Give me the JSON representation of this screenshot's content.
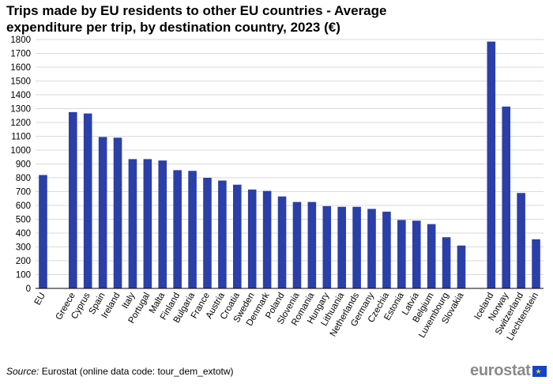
{
  "chart_data": {
    "type": "bar",
    "title": "Trips made by EU residents to other EU countries - Average expenditure per trip, by destination country, 2023 (€)",
    "xlabel": "",
    "ylabel": "",
    "ylim": [
      0,
      1800
    ],
    "ytick_step": 100,
    "grid": true,
    "bar_color": "#2b3fa8",
    "categories": [
      "EU",
      "",
      "Greece",
      "Cyprus",
      "Spain",
      "Ireland",
      "Italy",
      "Portugal",
      "Malta",
      "Finland",
      "Bulgaria",
      "France",
      "Austria",
      "Croatia",
      "Sweden",
      "Denmark",
      "Poland",
      "Slovenia",
      "Romania",
      "Hungary",
      "Lithuania",
      "Netherlands",
      "Germany",
      "Czechia",
      "Estonia",
      "Latvia",
      "Belgium",
      "Luxembourg",
      "Slovakia",
      "",
      "Iceland",
      "Norway",
      "Switzerland",
      "Liechtenstein"
    ],
    "values": [
      820,
      null,
      1275,
      1265,
      1095,
      1090,
      935,
      935,
      925,
      855,
      850,
      800,
      780,
      750,
      715,
      705,
      665,
      625,
      625,
      595,
      590,
      590,
      575,
      555,
      495,
      490,
      465,
      370,
      310,
      null,
      1785,
      1315,
      690,
      355
    ]
  },
  "source": {
    "label": "Source:",
    "text": " Eurostat (online data code: tour_dem_extotw)"
  },
  "logo": {
    "text": "eurostat",
    "flag_icon": "eu-flag-icon"
  }
}
